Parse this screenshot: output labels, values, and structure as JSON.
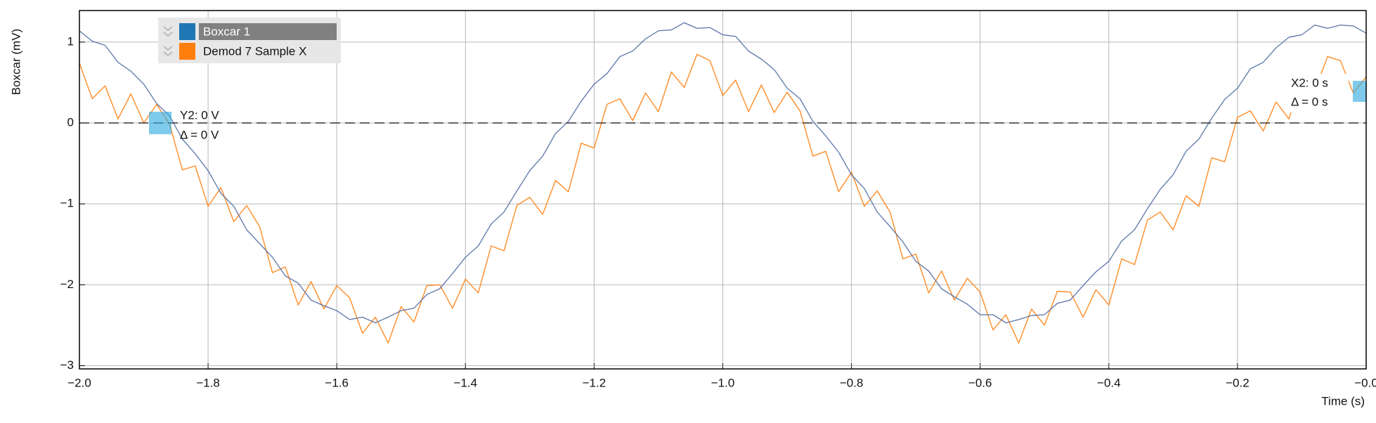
{
  "chart_data": {
    "type": "line",
    "x_label": "Time (s)",
    "y_label": "Boxcar (mV)",
    "xlim": [
      -2,
      0
    ],
    "ylim": [
      -3.04,
      1.39
    ],
    "xticks": [
      {
        "value": -2,
        "label": "−2.0"
      },
      {
        "value": -1.8,
        "label": "−1.8"
      },
      {
        "value": -1.6,
        "label": "−1.6"
      },
      {
        "value": -1.4,
        "label": "−1.4"
      },
      {
        "value": -1.2,
        "label": "−1.2"
      },
      {
        "value": -1,
        "label": "−1.0"
      },
      {
        "value": -0.8,
        "label": "−0.8"
      },
      {
        "value": -0.6,
        "label": "−0.6"
      },
      {
        "value": -0.4,
        "label": "−0.4"
      },
      {
        "value": -0.2,
        "label": "−0.2"
      },
      {
        "value": 0,
        "label": "−0.0"
      }
    ],
    "yticks": [
      1,
      0,
      {
        "value": -1,
        "label": "−1"
      },
      {
        "value": -2,
        "label": "−2"
      },
      {
        "value": -3,
        "label": "−3"
      }
    ],
    "grid": true,
    "x": [
      -2.0,
      -1.98,
      -1.96,
      -1.94,
      -1.92,
      -1.9,
      -1.88,
      -1.86,
      -1.84,
      -1.82,
      -1.8,
      -1.78,
      -1.76,
      -1.74,
      -1.72,
      -1.7,
      -1.68,
      -1.66,
      -1.64,
      -1.62,
      -1.6,
      -1.58,
      -1.56,
      -1.54,
      -1.52,
      -1.5,
      -1.48,
      -1.46,
      -1.44,
      -1.42,
      -1.4,
      -1.38,
      -1.36,
      -1.34,
      -1.32,
      -1.3,
      -1.28,
      -1.26,
      -1.24,
      -1.22,
      -1.2,
      -1.18,
      -1.16,
      -1.14,
      -1.12,
      -1.1,
      -1.08,
      -1.06,
      -1.04,
      -1.02,
      -1.0,
      -0.98,
      -0.96,
      -0.94,
      -0.92,
      -0.9,
      -0.88,
      -0.86,
      -0.84,
      -0.82,
      -0.8,
      -0.78,
      -0.76,
      -0.74,
      -0.72,
      -0.7,
      -0.68,
      -0.66,
      -0.64,
      -0.62,
      -0.6,
      -0.58,
      -0.56,
      -0.54,
      -0.52,
      -0.5,
      -0.48,
      -0.46,
      -0.44,
      -0.42,
      -0.4,
      -0.38,
      -0.36,
      -0.34,
      -0.32,
      -0.3,
      -0.28,
      -0.26,
      -0.24,
      -0.22,
      -0.2,
      -0.18,
      -0.16,
      -0.14,
      -0.12,
      -0.1,
      -0.08,
      -0.06,
      -0.04,
      -0.02,
      0.0
    ],
    "series": [
      {
        "name": "Boxcar 1",
        "color": "#1f77b4",
        "line_color": "#5570a6",
        "values": [
          1.14,
          1.01,
          0.96,
          0.75,
          0.64,
          0.48,
          0.24,
          0.09,
          -0.2,
          -0.38,
          -0.59,
          -0.87,
          -1.03,
          -1.32,
          -1.49,
          -1.66,
          -1.89,
          -1.98,
          -2.19,
          -2.26,
          -2.32,
          -2.43,
          -2.4,
          -2.47,
          -2.4,
          -2.32,
          -2.29,
          -2.12,
          -2.05,
          -1.86,
          -1.66,
          -1.52,
          -1.25,
          -1.1,
          -0.84,
          -0.59,
          -0.41,
          -0.13,
          0.02,
          0.27,
          0.48,
          0.61,
          0.82,
          0.89,
          1.04,
          1.14,
          1.15,
          1.24,
          1.17,
          1.18,
          1.09,
          1.07,
          0.89,
          0.79,
          0.66,
          0.43,
          0.3,
          0.02,
          -0.16,
          -0.36,
          -0.64,
          -0.81,
          -1.1,
          -1.28,
          -1.47,
          -1.71,
          -1.83,
          -2.05,
          -2.15,
          -2.24,
          -2.37,
          -2.37,
          -2.47,
          -2.43,
          -2.38,
          -2.37,
          -2.23,
          -2.19,
          -2.01,
          -1.84,
          -1.71,
          -1.46,
          -1.32,
          -1.06,
          -0.82,
          -0.64,
          -0.35,
          -0.2,
          0.06,
          0.29,
          0.43,
          0.67,
          0.75,
          0.93,
          1.06,
          1.09,
          1.21,
          1.17,
          1.21,
          1.2,
          1.11
        ]
      },
      {
        "name": "Demod 7 Sample X",
        "color": "#ff7f0e",
        "line_color": "#ff7f0e",
        "values": [
          0.74,
          0.3,
          0.46,
          0.05,
          0.36,
          0.0,
          0.23,
          -0.01,
          -0.58,
          -0.53,
          -1.03,
          -0.8,
          -1.22,
          -1.02,
          -1.28,
          -1.85,
          -1.78,
          -2.25,
          -1.96,
          -2.3,
          -2.01,
          -2.16,
          -2.6,
          -2.4,
          -2.72,
          -2.27,
          -2.46,
          -2.01,
          -2.0,
          -2.29,
          -1.93,
          -2.1,
          -1.52,
          -1.58,
          -1.02,
          -0.92,
          -1.13,
          -0.71,
          -0.85,
          -0.25,
          -0.31,
          0.23,
          0.3,
          0.03,
          0.37,
          0.14,
          0.63,
          0.44,
          0.85,
          0.77,
          0.34,
          0.53,
          0.14,
          0.47,
          0.13,
          0.38,
          0.15,
          -0.41,
          -0.35,
          -0.85,
          -0.61,
          -1.03,
          -0.84,
          -1.1,
          -1.68,
          -1.62,
          -2.1,
          -1.83,
          -2.19,
          -1.92,
          -2.09,
          -2.56,
          -2.37,
          -2.72,
          -2.3,
          -2.5,
          -2.08,
          -2.09,
          -2.4,
          -2.06,
          -2.25,
          -1.68,
          -1.75,
          -1.2,
          -1.1,
          -1.32,
          -0.9,
          -1.03,
          -0.43,
          -0.48,
          0.07,
          0.15,
          -0.1,
          0.26,
          0.05,
          0.56,
          0.4,
          0.82,
          0.77,
          0.37,
          0.57
        ]
      }
    ],
    "cursor_y": 0,
    "cursor_x": 0,
    "cursor_y_label": "Y2: 0 V",
    "cursor_y_delta": "Δ = 0 V",
    "cursor_x_label": "X2: 0 s",
    "cursor_x_delta": "Δ = 0 s"
  }
}
